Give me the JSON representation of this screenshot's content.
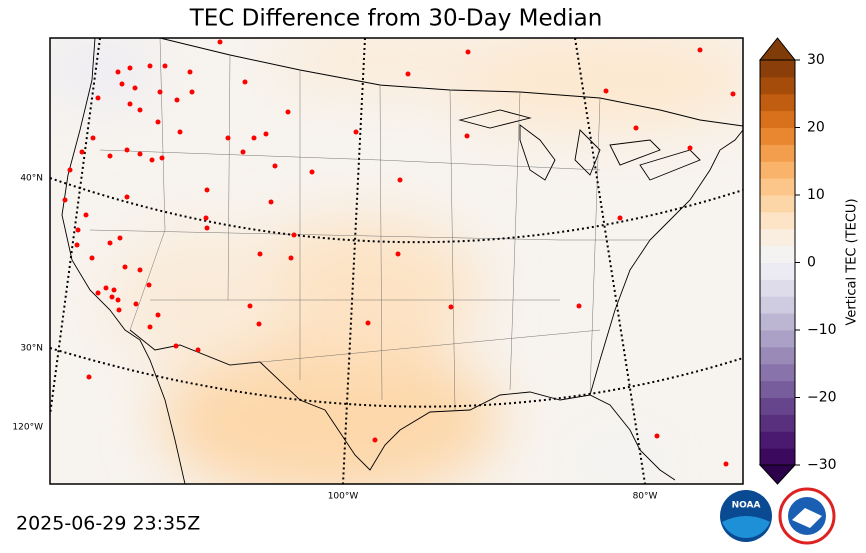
{
  "title": "TEC Difference from 30-Day Median",
  "timestamp": "2025-06-29 23:35Z",
  "map": {
    "lat_labels": [
      "40°N",
      "30°N"
    ],
    "lon_labels": [
      "120°W",
      "100°W",
      "80°W"
    ]
  },
  "colorbar": {
    "label": "Vertical TEC (TECU)",
    "lim": [
      -30,
      30
    ],
    "ticks": [
      {
        "value": -30,
        "label": "−30"
      },
      {
        "value": -20,
        "label": "−20"
      },
      {
        "value": -10,
        "label": "−10"
      },
      0,
      10,
      20,
      30
    ],
    "colors": [
      "#2d004b",
      "#3b0a5e",
      "#4a1a70",
      "#59307e",
      "#67458c",
      "#775d9b",
      "#8874aa",
      "#998ab8",
      "#aba0c6",
      "#bdb6d3",
      "#cfcbe0",
      "#dedbeb",
      "#eceaf3",
      "#f4f3f1",
      "#faeee0",
      "#fde4c6",
      "#fdd6a8",
      "#fcc68a",
      "#f9b36b",
      "#f39e4d",
      "#e98630",
      "#d9701c",
      "#c15d10",
      "#a64c0b",
      "#8a3e09",
      "#7f3b08"
    ]
  },
  "logos": {
    "noaa": "NOAA"
  }
}
